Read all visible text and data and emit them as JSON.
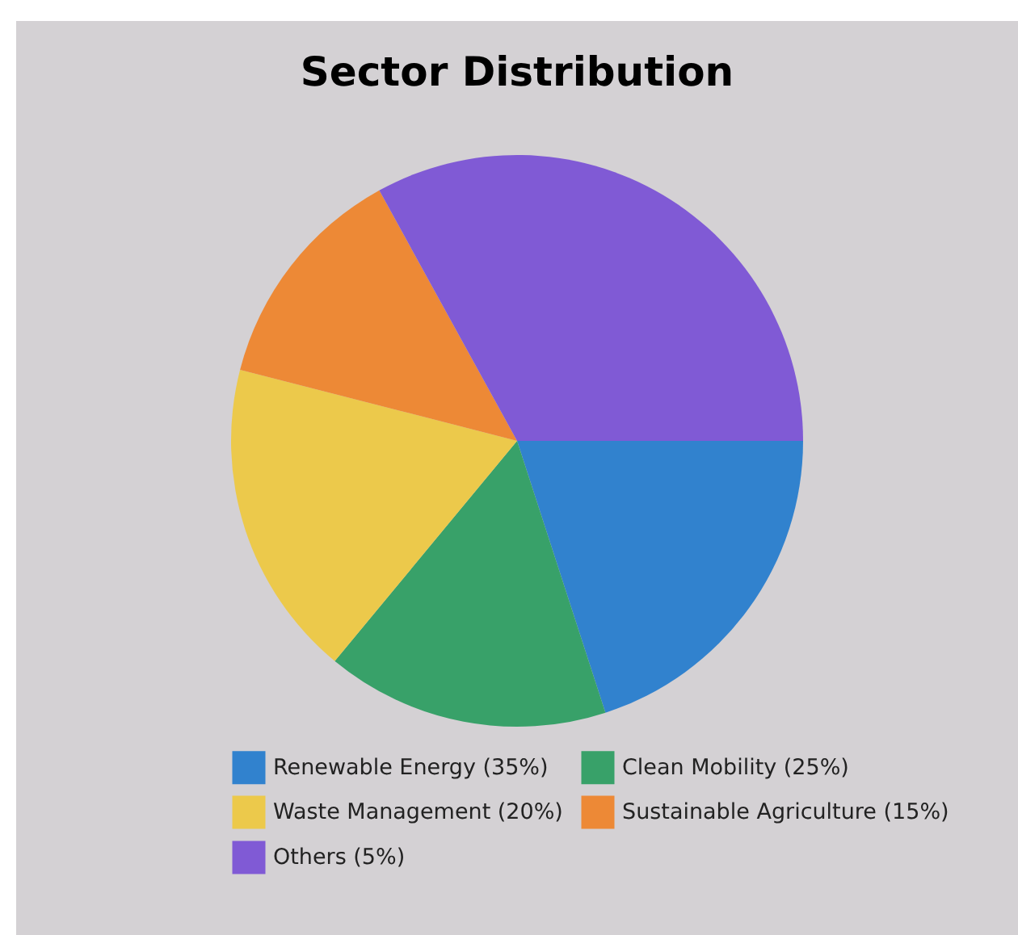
{
  "chart_data": {
    "type": "pie",
    "title": "Sector Distribution",
    "categories": [
      "Renewable Energy (35%)",
      "Clean Mobility (25%)",
      "Waste Management (20%)",
      "Sustainable Agriculture (15%)",
      "Others (5%)"
    ],
    "values": [
      20,
      16,
      18,
      13,
      33
    ],
    "colors": [
      "#3182ce",
      "#38a169",
      "#ecc94b",
      "#ed8936",
      "#805ad5"
    ],
    "legend": "bottom"
  }
}
